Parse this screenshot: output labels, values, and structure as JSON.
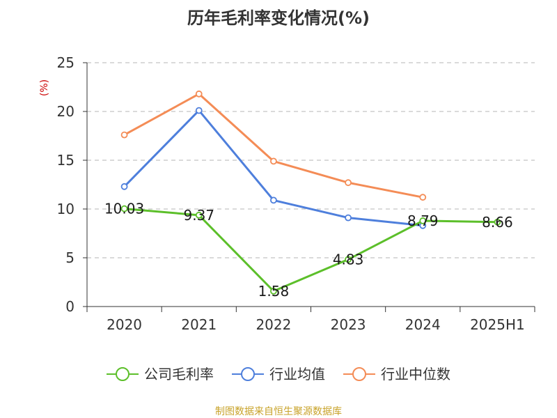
{
  "chart_data": {
    "type": "line",
    "title": "历年毛利率变化情况(%)",
    "ylabel": "(%)",
    "categories": [
      "2020",
      "2021",
      "2022",
      "2023",
      "2024",
      "2025H1"
    ],
    "ylim": [
      0,
      25
    ],
    "yticks": [
      0,
      5,
      10,
      15,
      20,
      25
    ],
    "grid": true,
    "legend_position": "bottom",
    "series": [
      {
        "name": "公司毛利率",
        "color": "#5cbf2a",
        "values": [
          10.03,
          9.37,
          1.58,
          4.83,
          8.79,
          8.66
        ],
        "labels": [
          "10.03",
          "9.37",
          "1.58",
          "4.83",
          "8.79",
          "8.66"
        ]
      },
      {
        "name": "行业均值",
        "color": "#4e7fdc",
        "values": [
          12.3,
          20.1,
          10.9,
          9.1,
          8.3,
          null
        ]
      },
      {
        "name": "行业中位数",
        "color": "#f48c56",
        "values": [
          17.6,
          21.8,
          14.9,
          12.7,
          11.2,
          null
        ]
      }
    ]
  },
  "ylabel_color": "#cc0000",
  "source_text": "制图数据来自恒生聚源数据库",
  "source_color": "#c8a32a"
}
